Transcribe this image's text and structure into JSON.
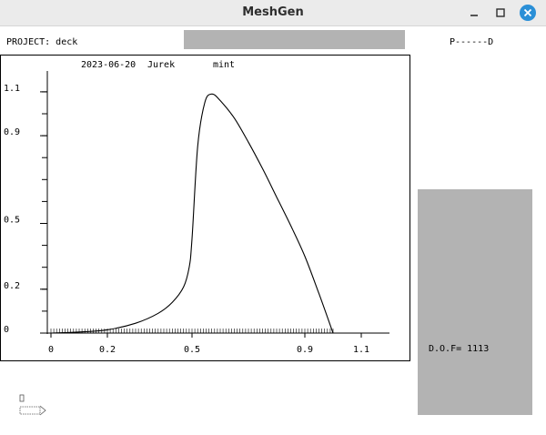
{
  "window": {
    "title": "MeshGen"
  },
  "header": {
    "project_label": "PROJECT: deck",
    "pd_label": "P------D"
  },
  "plot": {
    "date": "2023-06-20",
    "user": "Jurek",
    "material": "mint"
  },
  "panel": {
    "dof_label": "D.O.F= 1113"
  },
  "chart_data": {
    "type": "line",
    "title": "",
    "xlabel": "",
    "ylabel": "",
    "xlim": [
      0,
      1.2
    ],
    "ylim": [
      0,
      1.15
    ],
    "x_ticks": [
      0,
      0.2,
      0.5,
      0.9,
      1.1
    ],
    "x_tick_labels": [
      "0",
      "0.2",
      "0.5",
      "0.9",
      "1.1"
    ],
    "y_ticks": [
      0,
      0.2,
      0.5,
      0.9,
      1.1
    ],
    "y_tick_labels": [
      "0",
      "0.2",
      "0.5",
      "0.9",
      "1.1"
    ],
    "grid": false,
    "series": [
      {
        "x": [
          0,
          0.1,
          0.2,
          0.3,
          0.38,
          0.43,
          0.47,
          0.49,
          0.5,
          0.52,
          0.545,
          0.57,
          0.6,
          0.65,
          0.7,
          0.75,
          0.8,
          0.85,
          0.9,
          0.95,
          1.0
        ],
        "y": [
          0,
          0.005,
          0.015,
          0.045,
          0.09,
          0.14,
          0.21,
          0.3,
          0.43,
          0.85,
          1.05,
          1.09,
          1.06,
          0.98,
          0.87,
          0.75,
          0.62,
          0.49,
          0.35,
          0.18,
          0.0
        ]
      }
    ]
  }
}
